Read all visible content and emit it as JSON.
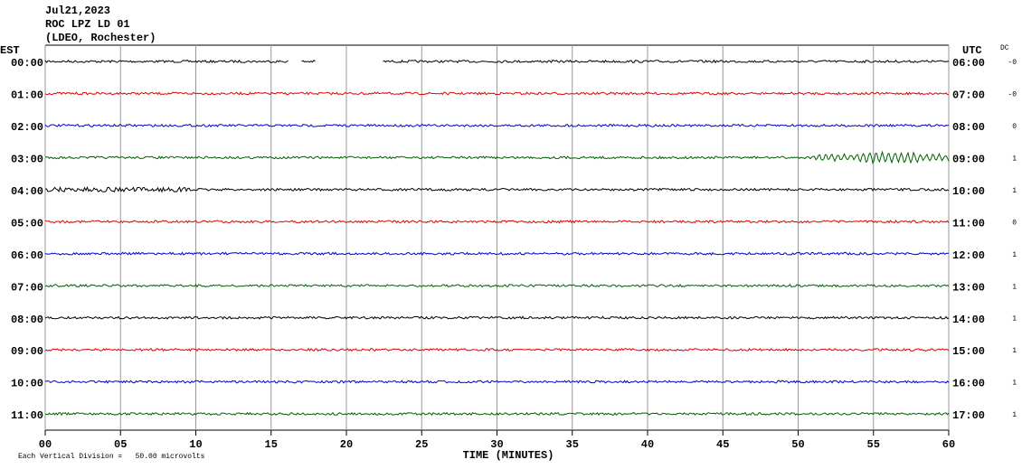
{
  "header": {
    "date": "Jul21,2023",
    "station": "ROC LPZ LD 01",
    "network": "(LDEO, Rochester)"
  },
  "chart_data": {
    "type": "helicorder",
    "left_axis_label": "EST",
    "right_axis_label": "UTC",
    "dc_label": "DC",
    "x_label": "TIME (MINUTES)",
    "footer": "Each Vertical Division =   50.00 microvolts",
    "xlim": [
      0,
      60
    ],
    "xticks": [
      {
        "value": 0,
        "label": "00"
      },
      {
        "value": 5,
        "label": "05"
      },
      10,
      15,
      20,
      25,
      30,
      35,
      40,
      45,
      50,
      55,
      60
    ],
    "grid": true,
    "rows": [
      {
        "est": "00:00",
        "utc": "06:00",
        "dc": "-0",
        "color": "#000000"
      },
      {
        "est": "01:00",
        "utc": "07:00",
        "dc": "-0",
        "color": "#e00000"
      },
      {
        "est": "02:00",
        "utc": "08:00",
        "dc": "0",
        "color": "#0000d0"
      },
      {
        "est": "03:00",
        "utc": "09:00",
        "dc": "1",
        "color": "#006000"
      },
      {
        "est": "04:00",
        "utc": "10:00",
        "dc": "1",
        "color": "#000000"
      },
      {
        "est": "05:00",
        "utc": "11:00",
        "dc": "0",
        "color": "#e00000"
      },
      {
        "est": "06:00",
        "utc": "12:00",
        "dc": "1",
        "color": "#0000d0"
      },
      {
        "est": "07:00",
        "utc": "13:00",
        "dc": "1",
        "color": "#006000"
      },
      {
        "est": "08:00",
        "utc": "14:00",
        "dc": "1",
        "color": "#000000"
      },
      {
        "est": "09:00",
        "utc": "15:00",
        "dc": "1",
        "color": "#e00000"
      },
      {
        "est": "10:00",
        "utc": "16:00",
        "dc": "1",
        "color": "#0000d0"
      },
      {
        "est": "11:00",
        "utc": "17:00",
        "dc": "1",
        "color": "#006000"
      }
    ]
  }
}
